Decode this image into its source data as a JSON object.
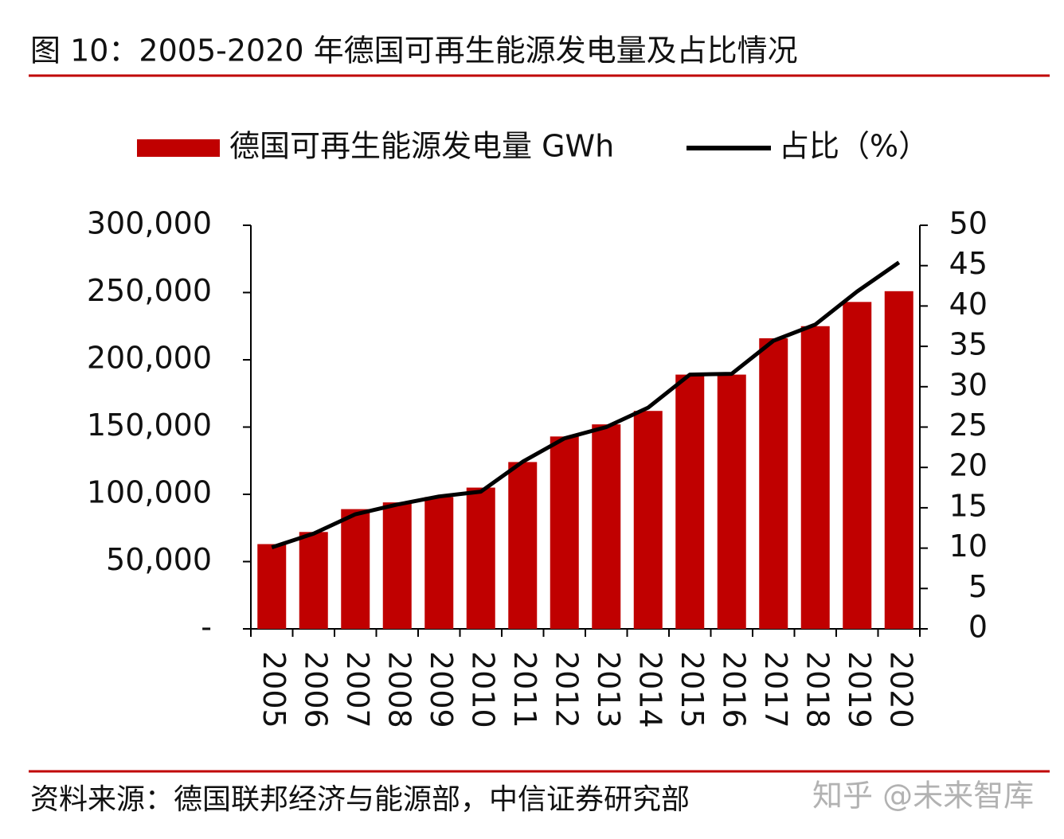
{
  "chart_data": {
    "type": "bar",
    "title": "图 10：2005-2020 年德国可再生能源发电量及占比情况",
    "source": "资料来源：德国联邦经济与能源部，中信证券研究部",
    "watermark": "知乎 @未来智库",
    "categories": [
      "2005",
      "2006",
      "2007",
      "2008",
      "2009",
      "2010",
      "2011",
      "2012",
      "2013",
      "2014",
      "2015",
      "2016",
      "2017",
      "2018",
      "2019",
      "2020"
    ],
    "series": [
      {
        "name": "德国可再生能源发电量 GWh",
        "color": "#c00000",
        "type": "bar",
        "values": [
          63000,
          72000,
          89000,
          94000,
          98000,
          105000,
          124000,
          143000,
          152000,
          162000,
          189000,
          189000,
          216000,
          225000,
          243000,
          251000
        ]
      },
      {
        "name": "占比（%）",
        "color": "#000000",
        "type": "line",
        "axis": "y2",
        "values": [
          10.1,
          11.8,
          14.2,
          15.4,
          16.4,
          17.0,
          20.7,
          23.6,
          25.0,
          27.4,
          31.5,
          31.6,
          35.7,
          37.7,
          41.8,
          45.4
        ]
      }
    ],
    "ylim": [
      0,
      300000
    ],
    "yticks": [
      {
        "value": 0,
        "label": "-"
      },
      {
        "value": 50000,
        "label": "50,000"
      },
      {
        "value": 100000,
        "label": "100,000"
      },
      {
        "value": 150000,
        "label": "150,000"
      },
      {
        "value": 200000,
        "label": "200,000"
      },
      {
        "value": 250000,
        "label": "250,000"
      },
      {
        "value": 300000,
        "label": "300,000"
      }
    ],
    "y2lim": [
      0,
      50
    ],
    "y2ticks": [
      0,
      5,
      10,
      15,
      20,
      25,
      30,
      35,
      40,
      45,
      50
    ]
  }
}
